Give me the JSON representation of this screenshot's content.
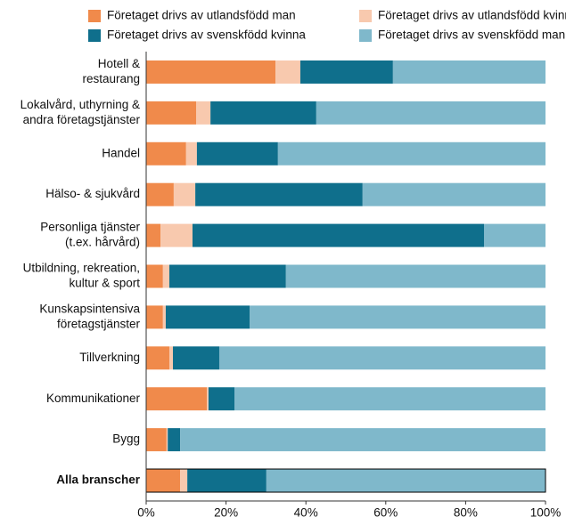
{
  "chart_data": {
    "type": "stacked-barh",
    "categories": [
      [
        "Hotell &",
        "restaurang"
      ],
      [
        "Lokalvård, uthyrning &",
        "andra företagstjänster"
      ],
      [
        "Handel"
      ],
      [
        "Hälso- & sjukvård"
      ],
      [
        "Personliga tjänster",
        "(t.ex. hårvård)"
      ],
      [
        "Utbildning, rekreation,",
        "kultur & sport"
      ],
      [
        "Kunskapsintensiva",
        "företagstjänster"
      ],
      [
        "Tillverkning"
      ],
      [
        "Kommunikationer"
      ],
      [
        "Bygg"
      ],
      [
        "Alla branscher"
      ]
    ],
    "series": [
      {
        "name": "Företaget drivs av utlandsfödd man",
        "color": "#f08a4b",
        "values": [
          32.4,
          12.5,
          10,
          6.9,
          3.6,
          4.2,
          4.2,
          5.8,
          15.2,
          5.1,
          8.5
        ]
      },
      {
        "name": "Företaget drivs av utlandsfödd kvinna",
        "color": "#f8c9ae",
        "values": [
          6.2,
          3.6,
          2.7,
          5.4,
          8,
          1.6,
          0.7,
          0.9,
          0.4,
          0.3,
          1.8
        ]
      },
      {
        "name": "Företaget drivs av svenskfödd kvinna",
        "color": "#0f6f8c",
        "values": [
          23.2,
          26.5,
          20.3,
          41.9,
          73,
          29.2,
          21,
          11.6,
          6.5,
          3.1,
          19.8
        ]
      },
      {
        "name": "Företaget drivs av svenskfödd man",
        "color": "#7fb8cb",
        "values": [
          38.2,
          57.4,
          67,
          45.8,
          15.4,
          65,
          74.1,
          81.7,
          77.9,
          91.5,
          69.9
        ]
      }
    ],
    "xlim": [
      0,
      100
    ],
    "xticks": [
      {
        "value": 0,
        "label": "0%"
      },
      {
        "value": 20,
        "label": "20%"
      },
      {
        "value": 40,
        "label": "40%"
      },
      {
        "value": 60,
        "label": "60%"
      },
      {
        "value": 80,
        "label": "80%"
      },
      {
        "value": 100,
        "label": "100%"
      }
    ]
  }
}
